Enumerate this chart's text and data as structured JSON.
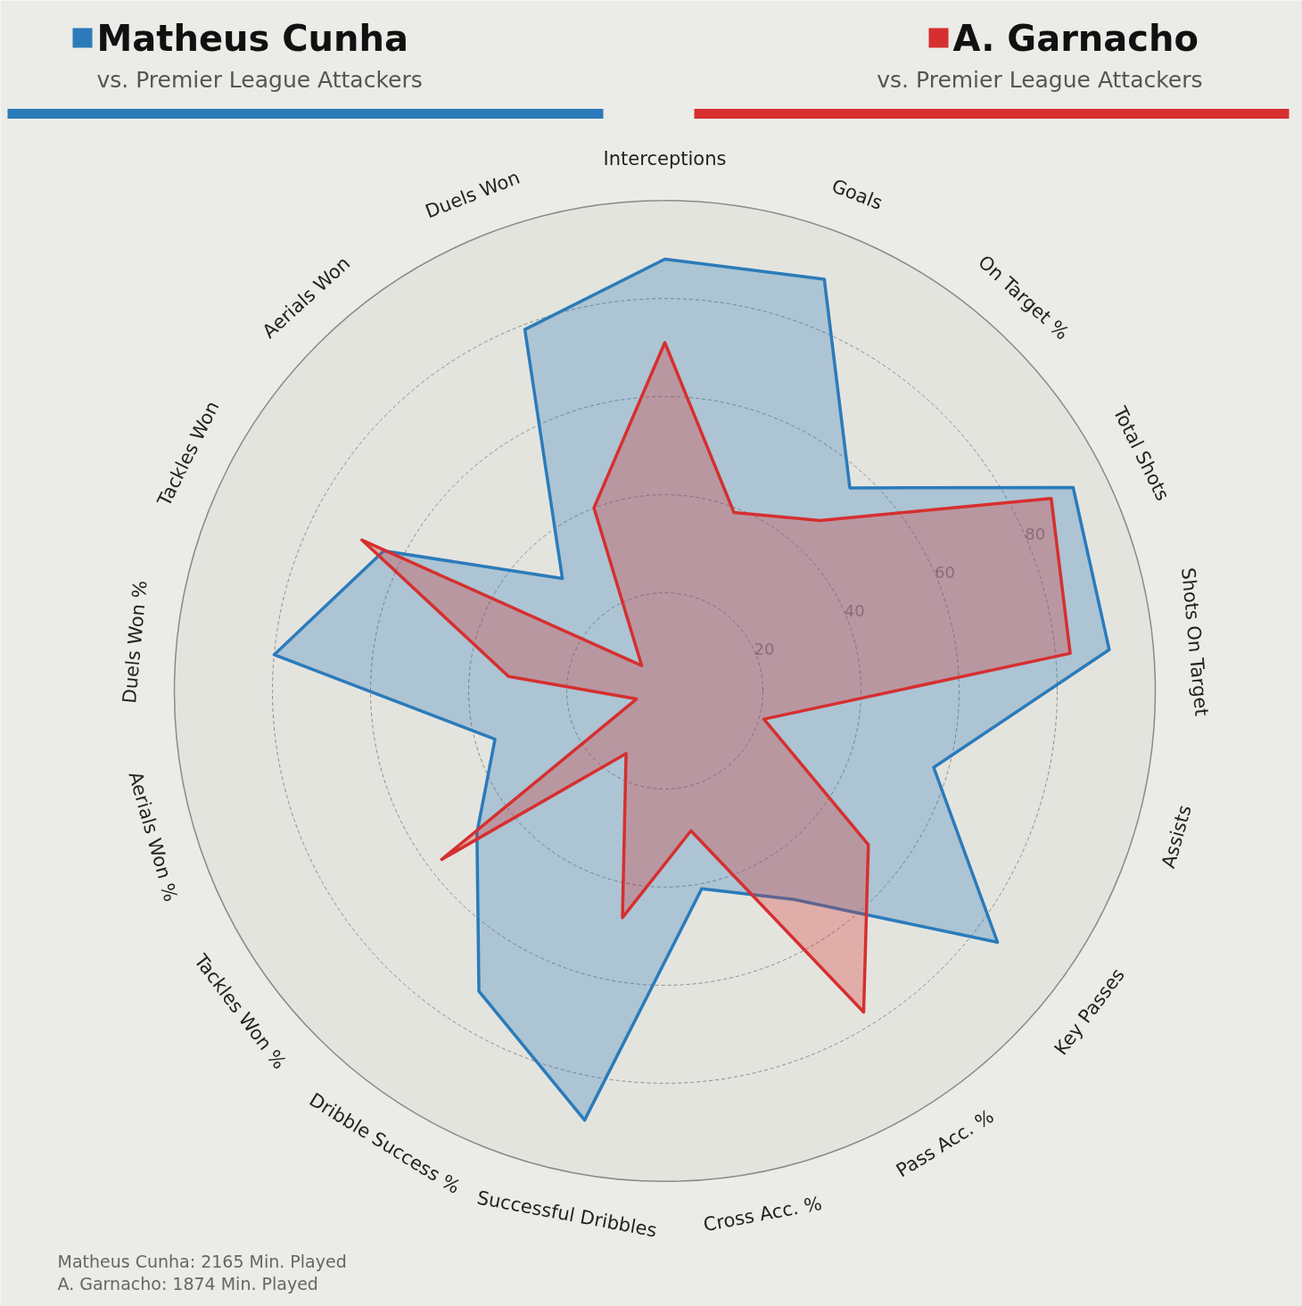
{
  "chart_data": {
    "type": "radar",
    "subtitle": "vs. Premier League Attackers",
    "categories": [
      "Interceptions",
      "Goals",
      "On Target %",
      "Total Shots",
      "Shots On Target",
      "Assists",
      "Key Passes",
      "Pass Acc. %",
      "Cross Acc. %",
      "Successful Dribbles",
      "Dribble Success %",
      "Tackles Won %",
      "Aerials Won %",
      "Duels Won %",
      "Tackles Won",
      "Aerials Won",
      "Duels Won"
    ],
    "series": [
      {
        "name": "Matheus Cunha",
        "color": "#2b7bba",
        "values": [
          88,
          90,
          56,
          93,
          91,
          57,
          85,
          50,
          41,
          89,
          72,
          48,
          36,
          80,
          64,
          31,
          79
        ]
      },
      {
        "name": "A. Garnacho",
        "color": "#d62f2f",
        "values": [
          71,
          39,
          47,
          88,
          83,
          21,
          52,
          77,
          29,
          47,
          15,
          57,
          6,
          32,
          69,
          7,
          40
        ]
      }
    ],
    "ylim": [
      0,
      100
    ],
    "yticks": [
      20,
      40,
      60,
      80
    ],
    "grid": true,
    "legend": "top",
    "annotations": [
      "vs. Premier League Attackers",
      "Matheus Cunha: 2165 Min. Played",
      "A. Garnacho: 1874 Min. Played"
    ]
  }
}
